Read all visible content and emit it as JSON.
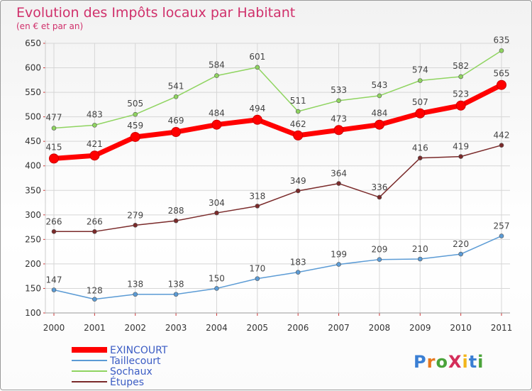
{
  "chart_data": {
    "type": "line",
    "title": "Evolution des Impôts locaux par Habitant",
    "subtitle": "(en € et par an)",
    "xlabel": "",
    "ylabel": "",
    "x": [
      "2000",
      "2001",
      "2002",
      "2003",
      "2004",
      "2005",
      "2006",
      "2007",
      "2008",
      "2009",
      "2010",
      "2011"
    ],
    "ylim": [
      100,
      650
    ],
    "yticks": [
      100,
      150,
      200,
      250,
      300,
      350,
      400,
      450,
      500,
      550,
      600,
      650
    ],
    "grid": true,
    "series": [
      {
        "name": "EXINCOURT",
        "color": "#ff0000",
        "values": [
          415,
          421,
          459,
          469,
          484,
          494,
          462,
          473,
          484,
          507,
          523,
          565
        ]
      },
      {
        "name": "Taillecourt",
        "color": "#5b9bd5",
        "values": [
          147,
          128,
          138,
          138,
          150,
          170,
          183,
          199,
          209,
          210,
          220,
          257
        ]
      },
      {
        "name": "Sochaux",
        "color": "#8fd460",
        "values": [
          477,
          483,
          505,
          541,
          584,
          601,
          511,
          533,
          543,
          574,
          582,
          635
        ]
      },
      {
        "name": "Étupes",
        "color": "#7a2a2a",
        "values": [
          266,
          266,
          279,
          288,
          304,
          318,
          349,
          364,
          336,
          416,
          419,
          442
        ]
      }
    ],
    "legend_position": "bottom-left"
  },
  "logo": {
    "text": "ProXiti"
  }
}
